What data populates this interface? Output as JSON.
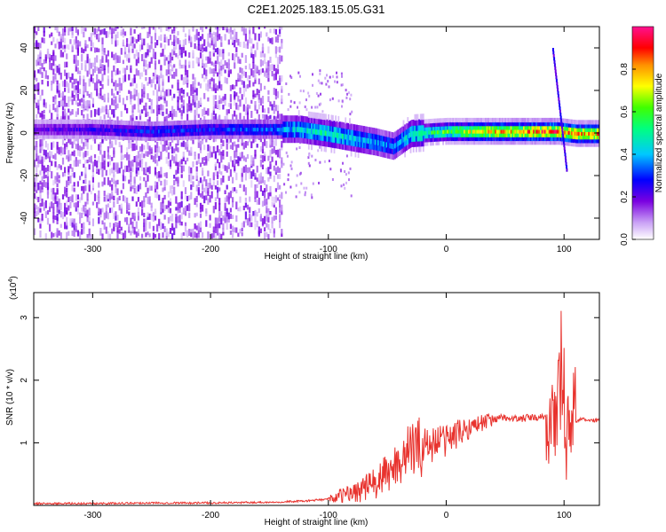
{
  "figure": {
    "title": "C2E1.2025.183.15.05.G31"
  },
  "chart_data": [
    {
      "type": "heatmap",
      "xlabel": "Height of straight line (km)",
      "ylabel": "Frequency (Hz)",
      "xlim": [
        -350,
        130
      ],
      "ylim": [
        -50,
        50
      ],
      "xticks": [
        -300,
        -200,
        -100,
        0,
        100
      ],
      "yticks": [
        -40,
        -20,
        0,
        20,
        40
      ],
      "colorbar": {
        "label": "Normalized spectral amplitude",
        "range": [
          0,
          1
        ],
        "ticks": [
          "0.0",
          "0.2",
          "0.4",
          "0.6",
          "0.8"
        ]
      },
      "ridge": [
        {
          "x": -350,
          "freq": 2,
          "amp": 0.2
        },
        {
          "x": -300,
          "freq": 2,
          "amp": 0.25
        },
        {
          "x": -250,
          "freq": 1,
          "amp": 0.3
        },
        {
          "x": -200,
          "freq": 2,
          "amp": 0.3
        },
        {
          "x": -150,
          "freq": 2,
          "amp": 0.35
        },
        {
          "x": -125,
          "freq": 2,
          "amp": 0.45
        },
        {
          "x": -100,
          "freq": 0,
          "amp": 0.5
        },
        {
          "x": -80,
          "freq": -2,
          "amp": 0.45
        },
        {
          "x": -60,
          "freq": -4,
          "amp": 0.4
        },
        {
          "x": -45,
          "freq": -6,
          "amp": 0.35
        },
        {
          "x": -30,
          "freq": 0,
          "amp": 0.5
        },
        {
          "x": 0,
          "freq": 1,
          "amp": 0.6
        },
        {
          "x": 25,
          "freq": 1,
          "amp": 0.75
        },
        {
          "x": 50,
          "freq": 1,
          "amp": 0.8
        },
        {
          "x": 75,
          "freq": 1,
          "amp": 0.85
        },
        {
          "x": 95,
          "freq": 1,
          "amp": 0.9
        },
        {
          "x": 110,
          "freq": 0,
          "amp": 0.85
        },
        {
          "x": 130,
          "freq": 0,
          "amp": 0.8
        }
      ],
      "noise_region": {
        "x_from": -350,
        "x_to": -140
      }
    },
    {
      "type": "line",
      "xlabel": "Height of straight line (km)",
      "ylabel": "SNR (10 * v/v)",
      "y_scale_label": "(x10",
      "y_scale_exp": "4",
      "y_scale_close": ")",
      "xlim": [
        -350,
        130
      ],
      "ylim": [
        0,
        3.4
      ],
      "xticks": [
        -300,
        -200,
        -100,
        0,
        100
      ],
      "yticks": [
        1,
        2,
        3
      ],
      "color": "#e8322d",
      "series": [
        {
          "x": [
            -350,
            -300,
            -250,
            -200,
            -150,
            -120,
            -100,
            -80,
            -60,
            -50,
            -40,
            -30,
            -20,
            -10,
            0,
            10,
            20,
            30,
            40,
            50,
            60,
            70,
            80,
            90,
            95,
            100,
            105,
            110,
            115,
            120,
            130
          ],
          "y": [
            0.03,
            0.03,
            0.04,
            0.04,
            0.05,
            0.07,
            0.1,
            0.2,
            0.35,
            0.5,
            0.7,
            0.9,
            0.95,
            1.0,
            1.05,
            1.15,
            1.25,
            1.32,
            1.38,
            1.4,
            1.38,
            1.4,
            1.4,
            1.42,
            1.5,
            1.7,
            1.4,
            1.35,
            1.38,
            1.36,
            1.36
          ]
        }
      ]
    }
  ]
}
